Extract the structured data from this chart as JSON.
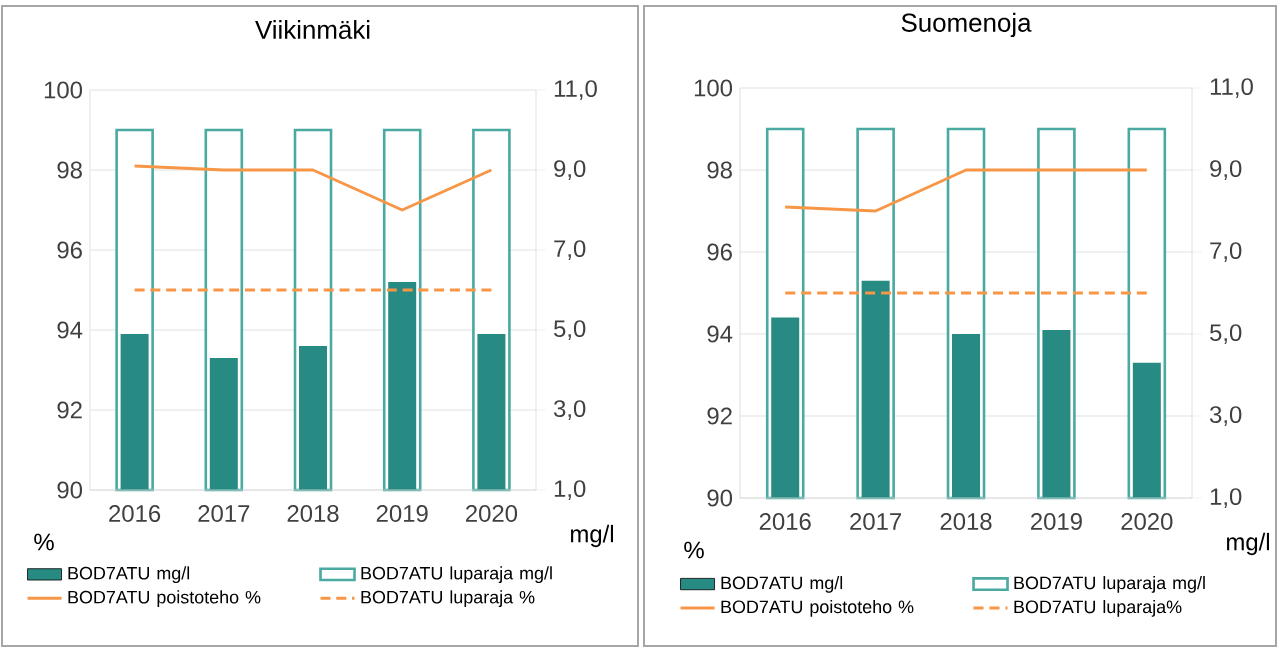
{
  "chart_data": [
    {
      "type": "bar",
      "title": "Viikinmäki",
      "ylabel": "%",
      "y2label": "mg/l",
      "categories": [
        "2016",
        "2017",
        "2018",
        "2019",
        "2020"
      ],
      "series": [
        {
          "name": "BOD7ATU mg/l",
          "axis": "y2",
          "color": "#278a83",
          "values": [
            4.9,
            4.3,
            4.6,
            6.2,
            4.9
          ]
        },
        {
          "name": "BOD7ATU luparaja mg/l",
          "axis": "y2",
          "color": "#4aa9a0",
          "values": [
            10.0,
            10.0,
            10.0,
            10.0,
            10.0
          ]
        },
        {
          "name": "BOD7ATU poistoteho %",
          "type": "line",
          "line_style": "solid",
          "color": "#f79646",
          "values": [
            98.1,
            98.0,
            98.0,
            97.0,
            98.0
          ]
        },
        {
          "name": "BOD7ATU luparaja %",
          "type": "line",
          "line_style": "dashed",
          "color": "#f79646",
          "values": [
            95.0,
            95.0,
            95.0,
            95.0,
            95.0
          ]
        }
      ],
      "ylim": [
        90,
        100
      ],
      "yticks": [
        90,
        92,
        94,
        96,
        98,
        100
      ],
      "y2lim": [
        1,
        11
      ],
      "y2ticks": [
        {
          "value": 1,
          "label": "1,0"
        },
        {
          "value": 3,
          "label": "3,0"
        },
        {
          "value": 5,
          "label": "5,0"
        },
        {
          "value": 7,
          "label": "7,0"
        },
        {
          "value": 9,
          "label": "9,0"
        },
        {
          "value": 11,
          "label": "11,0"
        }
      ],
      "grid": "y",
      "legend": "bottom"
    },
    {
      "type": "bar",
      "title": "Suomenoja",
      "ylabel": "%",
      "y2label": "mg/l",
      "categories": [
        "2016",
        "2017",
        "2018",
        "2019",
        "2020"
      ],
      "series": [
        {
          "name": "BOD7ATU mg/l",
          "axis": "y2",
          "color": "#278a83",
          "values": [
            5.4,
            6.3,
            5.0,
            5.1,
            4.3
          ]
        },
        {
          "name": "BOD7ATU luparaja mg/l",
          "axis": "y2",
          "color": "#4aa9a0",
          "values": [
            10.0,
            10.0,
            10.0,
            10.0,
            10.0
          ]
        },
        {
          "name": "BOD7ATU poistoteho %",
          "type": "line",
          "line_style": "solid",
          "color": "#f79646",
          "values": [
            97.1,
            97.0,
            98.0,
            98.0,
            98.0
          ]
        },
        {
          "name": "BOD7ATU luparaja%",
          "type": "line",
          "line_style": "dashed",
          "color": "#f79646",
          "values": [
            95.0,
            95.0,
            95.0,
            95.0,
            95.0
          ]
        }
      ],
      "ylim": [
        90,
        100
      ],
      "yticks": [
        90,
        92,
        94,
        96,
        98,
        100
      ],
      "y2lim": [
        1,
        11
      ],
      "y2ticks": [
        {
          "value": 1,
          "label": "1,0"
        },
        {
          "value": 3,
          "label": "3,0"
        },
        {
          "value": 5,
          "label": "5,0"
        },
        {
          "value": 7,
          "label": "7,0"
        },
        {
          "value": 9,
          "label": "9,0"
        },
        {
          "value": 11,
          "label": "11,0"
        }
      ],
      "grid": "y",
      "legend": "bottom"
    }
  ]
}
